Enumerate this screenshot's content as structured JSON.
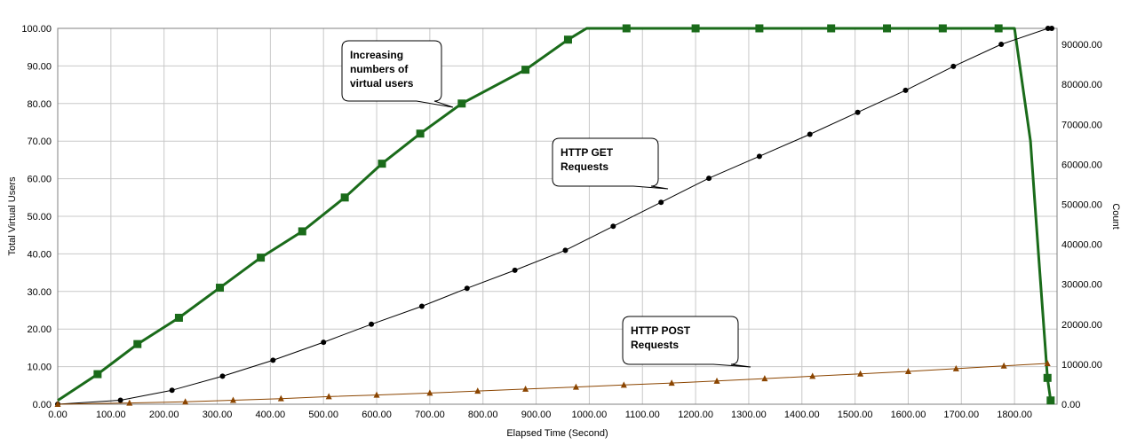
{
  "chart_data": {
    "type": "line",
    "xlabel": "Elapsed Time (Second)",
    "ylabel": "Total Virtual Users",
    "y2label": "Count",
    "xlim": [
      0,
      1880
    ],
    "ylim": [
      0,
      100
    ],
    "y2lim": [
      0,
      94000
    ],
    "grid": true,
    "x_ticks": [
      "0.00",
      "100.00",
      "200.00",
      "300.00",
      "400.00",
      "500.00",
      "600.00",
      "700.00",
      "800.00",
      "900.00",
      "1000.00",
      "1100.00",
      "1200.00",
      "1300.00",
      "1400.00",
      "1500.00",
      "1600.00",
      "1700.00",
      "1800.00"
    ],
    "y_ticks": [
      "0.00",
      "10.00",
      "20.00",
      "30.00",
      "40.00",
      "50.00",
      "60.00",
      "70.00",
      "80.00",
      "90.00",
      "100.00"
    ],
    "y2_ticks": [
      "0.00",
      "10000.00",
      "20000.00",
      "30000.00",
      "40000.00",
      "50000.00",
      "60000.00",
      "70000.00",
      "80000.00",
      "90000.00"
    ],
    "colors": {
      "users": "#1a6b1a",
      "get": "#000000",
      "post": "#8b4500",
      "grid": "#c8c8c8"
    },
    "series": [
      {
        "key": "users",
        "axis": "left",
        "marker": "square",
        "x": [
          0,
          75,
          150,
          228,
          305,
          382,
          460,
          540,
          610,
          682,
          760,
          880,
          960,
          995,
          1070,
          1200,
          1320,
          1455,
          1560,
          1665,
          1770,
          1800,
          1810,
          1830,
          1845,
          1858,
          1862,
          1868
        ],
        "y": [
          1,
          8,
          16,
          23,
          31,
          39,
          46,
          55,
          64,
          72,
          80,
          89,
          97,
          100,
          100,
          100,
          100,
          100,
          100,
          100,
          100,
          100,
          90,
          70,
          40,
          15,
          7,
          1
        ],
        "marker_x": [
          75,
          150,
          228,
          305,
          382,
          460,
          540,
          610,
          682,
          760,
          880,
          960,
          1070,
          1200,
          1320,
          1455,
          1560,
          1665,
          1770,
          1862,
          1868
        ],
        "marker_y": [
          8,
          16,
          23,
          31,
          39,
          46,
          55,
          64,
          72,
          80,
          89,
          97,
          100,
          100,
          100,
          100,
          100,
          100,
          100,
          7,
          1
        ]
      },
      {
        "key": "get",
        "axis": "right",
        "marker": "circle",
        "x": [
          0,
          118,
          215,
          310,
          405,
          500,
          590,
          685,
          770,
          860,
          955,
          1045,
          1135,
          1225,
          1320,
          1415,
          1505,
          1595,
          1685,
          1775,
          1863,
          1870
        ],
        "y": [
          0,
          1000,
          3500,
          7000,
          11000,
          15500,
          20000,
          24500,
          29000,
          33500,
          38500,
          44500,
          50500,
          56500,
          62000,
          67500,
          73000,
          78500,
          84500,
          90000,
          94000,
          94000
        ]
      },
      {
        "key": "post",
        "axis": "right",
        "marker": "triangle",
        "x": [
          0,
          135,
          240,
          330,
          420,
          510,
          600,
          700,
          790,
          880,
          975,
          1065,
          1155,
          1240,
          1330,
          1420,
          1510,
          1600,
          1690,
          1780,
          1862
        ],
        "y": [
          0,
          300,
          600,
          1000,
          1400,
          1900,
          2300,
          2800,
          3300,
          3800,
          4300,
          4800,
          5300,
          5800,
          6400,
          7000,
          7600,
          8200,
          8900,
          9600,
          10200
        ]
      }
    ],
    "annotations": [
      {
        "key": "a1",
        "lines": [
          "Increasing",
          "numbers of",
          "virtual users"
        ],
        "tx": 760,
        "ty": 80
      },
      {
        "key": "a2",
        "lines": [
          "HTTP GET",
          "Requests"
        ],
        "tx": 1140,
        "ty": 57
      },
      {
        "key": "a3",
        "lines": [
          "HTTP POST",
          "Requests"
        ],
        "tx": 1300,
        "ty": 10
      }
    ]
  }
}
